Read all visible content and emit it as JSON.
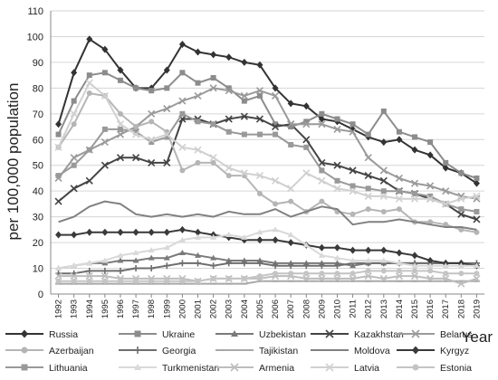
{
  "chart_data": {
    "type": "line",
    "title": "",
    "xlabel": "Year",
    "ylabel": "per 100,000 population",
    "ylim": [
      0,
      110
    ],
    "yticks": [
      0,
      10,
      20,
      30,
      40,
      50,
      60,
      70,
      80,
      90,
      100,
      110
    ],
    "x": [
      1992,
      1993,
      1994,
      1995,
      1996,
      1997,
      1998,
      1999,
      2000,
      2001,
      2002,
      2003,
      2004,
      2005,
      2006,
      2007,
      2008,
      2009,
      2010,
      2011,
      2012,
      2013,
      2014,
      2015,
      2016,
      2017,
      2018,
      2019
    ],
    "grid": "horizontal",
    "legend_position": "bottom",
    "series": [
      {
        "name": "Russia",
        "color": "#333333",
        "marker": "diamond",
        "values": [
          66,
          86,
          99,
          95,
          87,
          80,
          80,
          87,
          97,
          94,
          93,
          92,
          90,
          89,
          80,
          74,
          73,
          68,
          67,
          64,
          61,
          59,
          60,
          56,
          54,
          49,
          47,
          43
        ]
      },
      {
        "name": "Ukraine",
        "color": "#8c8c8c",
        "marker": "square",
        "values": [
          62,
          75,
          85,
          86,
          83,
          80,
          79,
          80,
          86,
          82,
          84,
          80,
          75,
          77,
          66,
          65,
          67,
          70,
          68,
          66,
          62,
          71,
          63,
          61,
          59,
          51,
          47,
          45
        ]
      },
      {
        "name": "Uzbekistan",
        "color": "#7a7a7a",
        "marker": "triangle",
        "values": [
          10,
          11,
          12,
          12,
          13,
          13,
          14,
          14,
          16,
          15,
          14,
          13,
          13,
          13,
          12,
          12,
          12,
          12,
          12,
          11,
          12,
          12,
          12,
          12,
          12,
          12,
          12,
          11
        ]
      },
      {
        "name": "Kazakhstan",
        "color": "#444444",
        "marker": "x",
        "values": [
          36,
          41,
          44,
          50,
          53,
          53,
          51,
          51,
          68,
          68,
          66,
          68,
          69,
          68,
          65,
          66,
          60,
          51,
          50,
          48,
          46,
          44,
          40,
          39,
          37,
          35,
          31,
          29
        ]
      },
      {
        "name": "Belarus",
        "color": "#9a9a9a",
        "marker": "x",
        "values": [
          45,
          53,
          56,
          59,
          62,
          65,
          70,
          72,
          75,
          77,
          80,
          79,
          77,
          79,
          77,
          66,
          66,
          66,
          64,
          63,
          53,
          48,
          45,
          43,
          42,
          40,
          38,
          37
        ]
      },
      {
        "name": "Azerbaijan",
        "color": "#b5b5b5",
        "marker": "circle",
        "values": [
          57,
          66,
          78,
          77,
          70,
          65,
          67,
          63,
          48,
          51,
          51,
          46,
          46,
          39,
          35,
          36,
          32,
          36,
          32,
          31,
          33,
          32,
          33,
          28,
          28,
          27,
          25,
          24
        ]
      },
      {
        "name": "Georgia",
        "color": "#6e6e6e",
        "marker": "plus",
        "values": [
          8,
          8,
          9,
          9,
          9,
          10,
          10,
          11,
          12,
          12,
          11,
          12,
          12,
          12,
          11,
          11,
          11,
          11,
          11,
          12,
          12,
          12,
          12,
          12,
          12,
          12,
          12,
          12
        ]
      },
      {
        "name": "Tajikistan",
        "color": "#a8a8a8",
        "marker": "dash",
        "values": [
          4,
          4,
          4,
          4,
          4,
          4,
          4,
          4,
          4,
          4,
          4,
          4,
          4,
          5,
          5,
          5,
          5,
          5,
          5,
          5,
          5,
          5,
          5,
          5,
          5,
          5,
          5,
          5
        ]
      },
      {
        "name": "Moldova",
        "color": "#808080",
        "marker": "none",
        "values": [
          28,
          30,
          34,
          36,
          35,
          31,
          30,
          31,
          30,
          31,
          30,
          32,
          31,
          31,
          33,
          30,
          32,
          34,
          33,
          27,
          28,
          28,
          29,
          28,
          27,
          26,
          26,
          25
        ]
      },
      {
        "name": "Kyrgyz",
        "color": "#3a3a3a",
        "marker": "diamond",
        "values": [
          23,
          23,
          24,
          24,
          24,
          24,
          24,
          24,
          25,
          24,
          23,
          22,
          21,
          21,
          21,
          20,
          19,
          18,
          18,
          17,
          17,
          17,
          16,
          15,
          13,
          12,
          12,
          11
        ]
      },
      {
        "name": "Lithuania",
        "color": "#999999",
        "marker": "square",
        "values": [
          46,
          50,
          56,
          64,
          64,
          63,
          59,
          61,
          70,
          67,
          66,
          63,
          62,
          62,
          62,
          58,
          57,
          48,
          44,
          42,
          41,
          40,
          40,
          39,
          38,
          35,
          33,
          32
        ]
      },
      {
        "name": "Turkmenistan",
        "color": "#d9d9d9",
        "marker": "triangle",
        "values": [
          10,
          11,
          12,
          13,
          15,
          16,
          17,
          18,
          21,
          22,
          22,
          23,
          22,
          24,
          25,
          23,
          19,
          15,
          14,
          13,
          13,
          13,
          12,
          11,
          11,
          11,
          11,
          11
        ]
      },
      {
        "name": "Armenia",
        "color": "#bdbdbd",
        "marker": "x",
        "values": [
          7,
          7,
          7,
          7,
          6,
          6,
          6,
          6,
          6,
          5,
          6,
          6,
          6,
          6,
          7,
          7,
          6,
          6,
          6,
          6,
          7,
          6,
          7,
          7,
          6,
          6,
          4,
          6
        ]
      },
      {
        "name": "Latvia",
        "color": "#d0d0d0",
        "marker": "x",
        "values": [
          57,
          70,
          82,
          77,
          66,
          62,
          60,
          62,
          57,
          56,
          53,
          49,
          47,
          46,
          44,
          41,
          47,
          44,
          41,
          40,
          38,
          38,
          37,
          37,
          37,
          35,
          37,
          38
        ]
      },
      {
        "name": "Estonia",
        "color": "#c4c4c4",
        "marker": "circle",
        "values": [
          5,
          5,
          5,
          5,
          5,
          5,
          5,
          5,
          5,
          5,
          6,
          6,
          6,
          7,
          8,
          8,
          8,
          8,
          8,
          8,
          9,
          9,
          9,
          9,
          9,
          8,
          8,
          8
        ]
      }
    ]
  }
}
